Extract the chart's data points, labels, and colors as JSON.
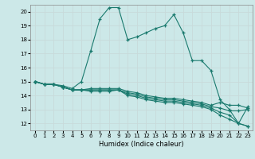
{
  "xlabel": "Humidex (Indice chaleur)",
  "background_color": "#cce8e8",
  "grid_color": "#b8d4d4",
  "line_color": "#1a7a6e",
  "xlim": [
    -0.5,
    23.5
  ],
  "ylim": [
    11.5,
    20.5
  ],
  "yticks": [
    12,
    13,
    14,
    15,
    16,
    17,
    18,
    19,
    20
  ],
  "xticks": [
    0,
    1,
    2,
    3,
    4,
    5,
    6,
    7,
    8,
    9,
    10,
    11,
    12,
    13,
    14,
    15,
    16,
    17,
    18,
    19,
    20,
    21,
    22,
    23
  ],
  "series": [
    [
      15.0,
      14.8,
      14.8,
      14.7,
      14.5,
      15.0,
      17.2,
      19.5,
      20.3,
      20.3,
      18.0,
      18.2,
      18.5,
      18.8,
      19.0,
      19.8,
      18.5,
      16.5,
      16.5,
      15.8,
      13.7,
      13.0,
      12.0,
      11.8
    ],
    [
      15.0,
      14.8,
      14.8,
      14.6,
      14.4,
      14.4,
      14.5,
      14.5,
      14.5,
      14.5,
      14.3,
      14.2,
      14.0,
      13.9,
      13.8,
      13.8,
      13.7,
      13.6,
      13.5,
      13.3,
      13.5,
      13.3,
      13.3,
      13.1
    ],
    [
      15.0,
      14.8,
      14.8,
      14.6,
      14.4,
      14.4,
      14.4,
      14.4,
      14.4,
      14.4,
      14.2,
      14.1,
      13.9,
      13.8,
      13.7,
      13.7,
      13.6,
      13.5,
      13.4,
      13.2,
      13.1,
      12.9,
      12.9,
      13.0
    ],
    [
      15.0,
      14.8,
      14.8,
      14.6,
      14.4,
      14.4,
      14.4,
      14.4,
      14.4,
      14.4,
      14.1,
      14.0,
      13.8,
      13.7,
      13.6,
      13.6,
      13.5,
      13.4,
      13.3,
      13.1,
      12.8,
      12.6,
      12.0,
      11.8
    ],
    [
      15.0,
      14.8,
      14.8,
      14.6,
      14.4,
      14.4,
      14.3,
      14.3,
      14.3,
      14.4,
      14.0,
      13.9,
      13.7,
      13.6,
      13.5,
      13.5,
      13.4,
      13.3,
      13.2,
      13.0,
      12.6,
      12.3,
      12.0,
      13.2
    ]
  ]
}
